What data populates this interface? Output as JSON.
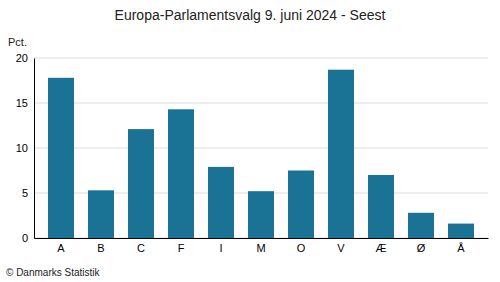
{
  "chart_data": {
    "type": "bar",
    "title": "Europa-Parlamentsvalg 9. juni 2024 - Seest",
    "categories": [
      "A",
      "B",
      "C",
      "F",
      "I",
      "M",
      "O",
      "V",
      "Æ",
      "Ø",
      "Å"
    ],
    "values": [
      17.8,
      5.3,
      12.1,
      14.3,
      7.9,
      5.2,
      7.5,
      18.7,
      7.0,
      2.8,
      1.6
    ],
    "color": "#1a7294",
    "ylim": [
      0,
      20
    ],
    "yticks": [
      0,
      5,
      10,
      15,
      20
    ],
    "grid": true,
    "y_label": "Pct.",
    "annotations": [
      "© Danmarks Statistik"
    ]
  }
}
